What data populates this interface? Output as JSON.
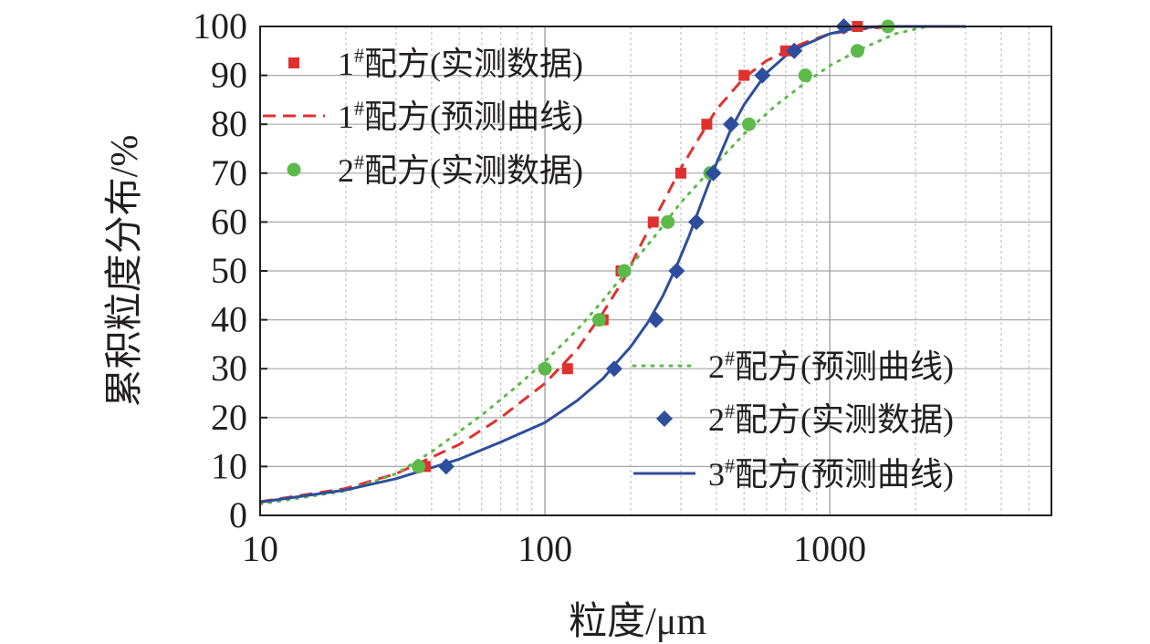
{
  "chart_data": {
    "type": "scatter",
    "x_scale": "log",
    "xlim": [
      10,
      6000
    ],
    "ylim": [
      0,
      100
    ],
    "xlabel": "粒度/μm",
    "ylabel": "累积粒度分布/%",
    "grid": true,
    "x_tick_labels": [
      "10",
      "100",
      "1000"
    ],
    "y_tick_labels": [
      "0",
      "10",
      "20",
      "30",
      "40",
      "50",
      "60",
      "70",
      "80",
      "90",
      "100"
    ],
    "series": [
      {
        "id": "s1_measured",
        "name": "1#配方(实测数据)",
        "kind": "markers",
        "marker": "square",
        "color": "#e0312f",
        "legend_name": "配方(实测数据)",
        "legend_num": "1",
        "legend_sup": "#",
        "legend_position": "top-left",
        "x": [
          38,
          120,
          160,
          185,
          240,
          300,
          370,
          500,
          700,
          1250
        ],
        "y": [
          10,
          30,
          40,
          50,
          60,
          70,
          80,
          90,
          95,
          100
        ]
      },
      {
        "id": "s1_predicted",
        "name": "1#配方(预测曲线)",
        "kind": "line",
        "dash": "dashed",
        "color": "#e0312f",
        "legend_name": "配方(预测曲线)",
        "legend_num": "1",
        "legend_sup": "#",
        "legend_position": "top-left",
        "x": [
          10,
          20,
          30,
          50,
          70,
          100,
          130,
          160,
          190,
          220,
          260,
          300,
          350,
          400,
          500,
          600,
          800,
          1000,
          1300,
          1700,
          3000
        ],
        "y": [
          2.8,
          5.5,
          8.5,
          14.5,
          20,
          27,
          34,
          41.5,
          48.5,
          56,
          64,
          71,
          77.5,
          83,
          89.5,
          93,
          96.5,
          98.5,
          99.5,
          100,
          100
        ]
      },
      {
        "id": "s2_measured_green",
        "name": "2#配方(实测数据)",
        "kind": "markers",
        "marker": "circle",
        "color": "#5cb94a",
        "legend_name": "配方(实测数据)",
        "legend_num": "2",
        "legend_sup": "#",
        "legend_position": "top-left",
        "x": [
          36,
          100,
          155,
          190,
          270,
          380,
          520,
          820,
          1250,
          1600
        ],
        "y": [
          10,
          30,
          40,
          50,
          60,
          70,
          80,
          90,
          95,
          100
        ]
      },
      {
        "id": "s2_predicted",
        "name": "2#配方(预测曲线)",
        "kind": "line",
        "dash": "dotted",
        "color": "#5cb94a",
        "legend_name": "配方(预测曲线)",
        "legend_num": "2",
        "legend_sup": "#",
        "legend_position": "bottom-right",
        "x": [
          10,
          20,
          30,
          40,
          60,
          80,
          100,
          130,
          160,
          200,
          250,
          300,
          400,
          500,
          650,
          800,
          1000,
          1300,
          1700,
          2200,
          3000
        ],
        "y": [
          2.3,
          5,
          8.5,
          13,
          20.5,
          26.5,
          31.5,
          38,
          44,
          51,
          58,
          64,
          72,
          78,
          84,
          88,
          92,
          95.5,
          98.5,
          100,
          100
        ]
      },
      {
        "id": "s3_measured_blue",
        "name": "2#配方(实测数据)",
        "kind": "markers",
        "marker": "diamond",
        "color": "#2d4e9d",
        "legend_name": "配方(实测数据)",
        "legend_num": "2",
        "legend_sup": "#",
        "legend_position": "bottom-right",
        "x": [
          45,
          175,
          245,
          290,
          340,
          390,
          450,
          580,
          750,
          1120
        ],
        "y": [
          10,
          30,
          40,
          50,
          60,
          70,
          80,
          90,
          95,
          100
        ]
      },
      {
        "id": "s3_predicted",
        "name": "3#配方(预测曲线)",
        "kind": "line",
        "dash": "solid",
        "color": "#2d4e9d",
        "legend_name": "配方(预测曲线)",
        "legend_num": "3",
        "legend_sup": "#",
        "legend_position": "bottom-right",
        "x": [
          10,
          20,
          30,
          50,
          70,
          100,
          130,
          160,
          180,
          200,
          230,
          260,
          290,
          320,
          360,
          400,
          450,
          500,
          600,
          700,
          800,
          1000,
          1200,
          1500,
          3000
        ],
        "y": [
          2.7,
          5.2,
          7.5,
          11.5,
          15,
          19,
          23.5,
          28,
          31.5,
          34.5,
          39.5,
          45,
          51,
          57,
          65,
          72,
          79,
          84,
          90.5,
          94,
          96,
          98.5,
          99.5,
          100,
          100
        ]
      }
    ]
  }
}
